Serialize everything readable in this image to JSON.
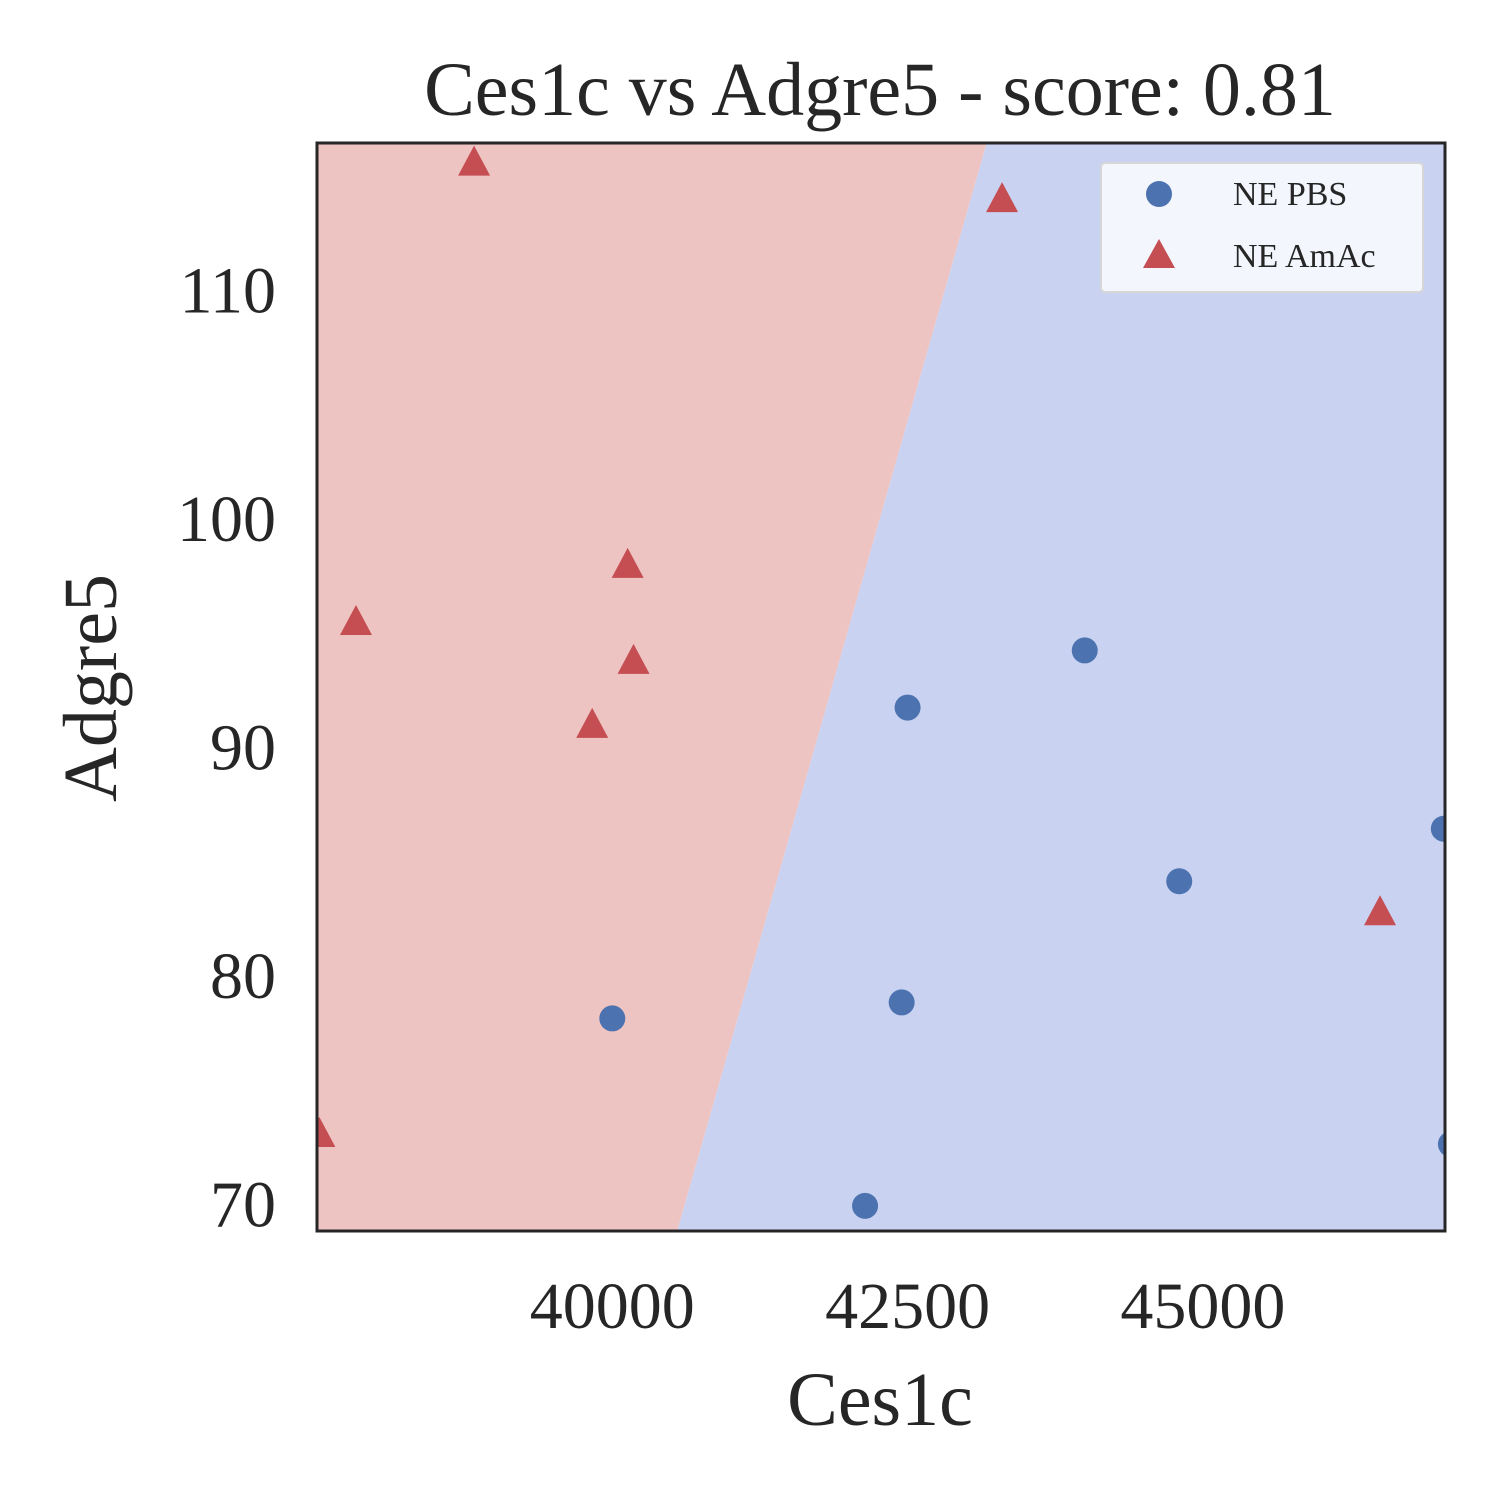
{
  "chart_data": {
    "type": "scatter",
    "title": "Ces1c vs Adgre5 - score: 0.81",
    "xlabel": "Ces1c",
    "ylabel": "Adgre5",
    "xlim": [
      37500,
      47050
    ],
    "ylim": [
      68.8,
      116.4
    ],
    "xticks": [
      40000,
      42500,
      45000
    ],
    "yticks": [
      70,
      80,
      90,
      100,
      110
    ],
    "grid": false,
    "legend_position": "top-right",
    "decision_boundary": {
      "description": "linear classifier regions",
      "line": [
        [
          40550,
          68.8
        ],
        [
          43170,
          116.4
        ]
      ],
      "left_class": "NE AmAc",
      "right_class": "NE PBS"
    },
    "series": [
      {
        "name": "NE PBS",
        "marker": "circle",
        "color": "#4c72b0",
        "region_color": "#c9d2f1",
        "points": [
          [
            40000,
            78.1
          ],
          [
            42140,
            69.9
          ],
          [
            42450,
            78.8
          ],
          [
            42500,
            91.7
          ],
          [
            44000,
            94.2
          ],
          [
            44800,
            84.1
          ],
          [
            47040,
            86.4
          ],
          [
            47100,
            72.6
          ]
        ]
      },
      {
        "name": "NE AmAc",
        "marker": "triangle",
        "color": "#c44e52",
        "region_color": "#eec4c3",
        "points": [
          [
            37520,
            73.0
          ],
          [
            37830,
            95.4
          ],
          [
            38830,
            115.5
          ],
          [
            39830,
            90.9
          ],
          [
            40130,
            97.9
          ],
          [
            40180,
            93.7
          ],
          [
            43300,
            113.9
          ],
          [
            46500,
            82.7
          ]
        ]
      }
    ]
  }
}
